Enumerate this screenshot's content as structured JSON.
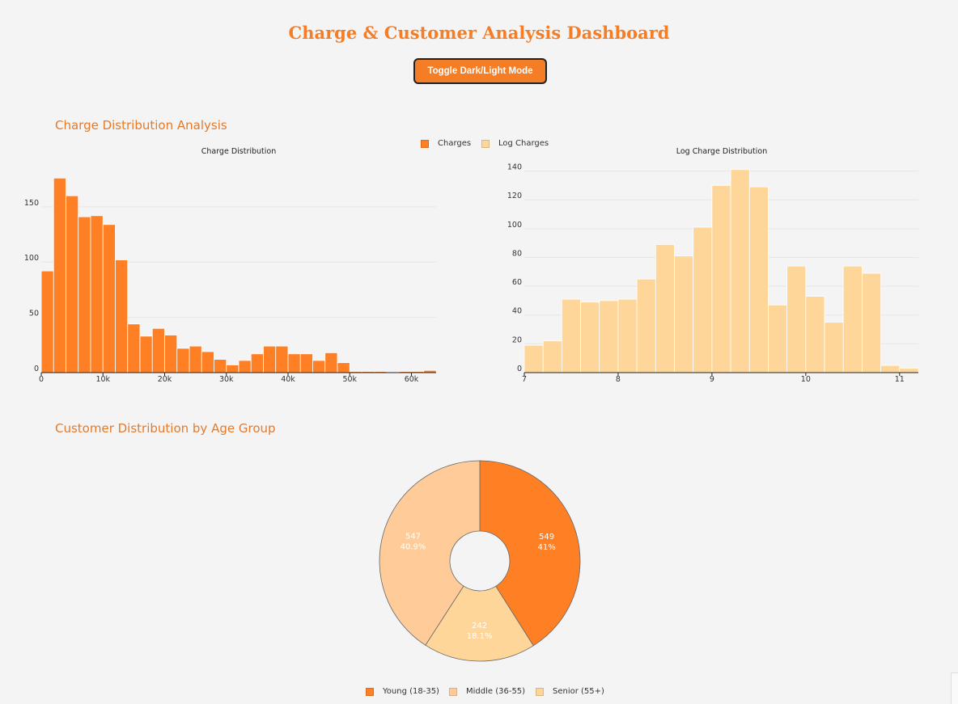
{
  "header": {
    "title": "Charge & Customer Analysis Dashboard",
    "toggle_label": "Toggle Dark/Light Mode"
  },
  "sections": {
    "charges_title": "Charge Distribution Analysis",
    "age_title": "Customer Distribution by Age Group"
  },
  "colors": {
    "accent": "#f47d26",
    "charges": "#ff7f24",
    "log_charges": "#ffd699",
    "middle": "#ffcc99",
    "grid": "#e6e6e6"
  },
  "hist_legend": [
    {
      "label": "Charges",
      "color": "#ff7f24"
    },
    {
      "label": "Log Charges",
      "color": "#ffd699"
    }
  ],
  "chart_data": [
    {
      "type": "bar",
      "title": "Charge Distribution",
      "xlabel": "",
      "ylabel": "",
      "bin_start": 0,
      "bin_width": 2000,
      "values": [
        92,
        176,
        160,
        141,
        142,
        134,
        102,
        44,
        33,
        40,
        34,
        22,
        24,
        19,
        12,
        7,
        11,
        17,
        24,
        24,
        17,
        17,
        11,
        18,
        9,
        1,
        1,
        1,
        0,
        1,
        1,
        2
      ],
      "xlim": [
        0,
        64000
      ],
      "ylim": [
        0,
        185
      ],
      "xticks": [
        0,
        10000,
        20000,
        30000,
        40000,
        50000,
        60000
      ],
      "xtick_labels": [
        "0",
        "10k",
        "20k",
        "30k",
        "40k",
        "50k",
        "60k"
      ],
      "yticks": [
        0,
        50,
        100,
        150
      ],
      "ytick_labels": [
        "0",
        "50",
        "100",
        "150"
      ],
      "grid": true
    },
    {
      "type": "bar",
      "title": "Log Charge Distribution",
      "xlabel": "",
      "ylabel": "",
      "bin_start": 7.0,
      "bin_width": 0.2,
      "values": [
        19,
        22,
        51,
        49,
        50,
        51,
        65,
        89,
        81,
        101,
        130,
        141,
        129,
        47,
        74,
        53,
        35,
        74,
        69,
        5,
        3
      ],
      "xlim": [
        7.0,
        11.2
      ],
      "ylim": [
        0,
        142
      ],
      "xticks": [
        7,
        8,
        9,
        10,
        11
      ],
      "xtick_labels": [
        "7",
        "8",
        "9",
        "10",
        "11"
      ],
      "yticks": [
        0,
        20,
        40,
        60,
        80,
        100,
        120,
        140
      ],
      "ytick_labels": [
        "0",
        "20",
        "40",
        "60",
        "80",
        "100",
        "120",
        "140"
      ],
      "grid": true
    },
    {
      "type": "pie",
      "hole": true,
      "labels": [
        "Young (18-35)",
        "Senior (55+)",
        "Middle (36-55)"
      ],
      "values": [
        549,
        242,
        547
      ],
      "percent_labels": [
        "41%",
        "18.1%",
        "40.9%"
      ],
      "value_labels": [
        "549",
        "242",
        "547"
      ],
      "colors": [
        "#ff7f24",
        "#ffd699",
        "#ffcc99"
      ],
      "legend": [
        "Young (18-35)",
        "Middle (36-55)",
        "Senior (55+)"
      ],
      "legend_colors": [
        "#ff7f24",
        "#ffcc99",
        "#ffd699"
      ],
      "legend_position": "bottom"
    }
  ]
}
